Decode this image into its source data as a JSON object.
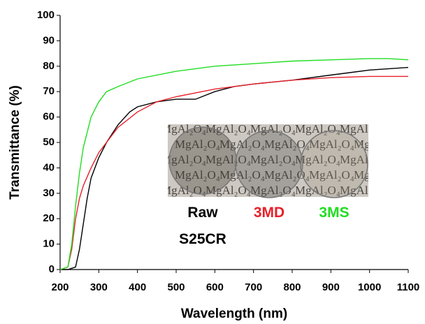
{
  "chart_data": {
    "type": "line",
    "xlabel": "Wavelength (nm)",
    "ylabel": "Transmittance (%)",
    "xlim": [
      200,
      1100
    ],
    "ylim": [
      0,
      100
    ],
    "xticks": [
      200,
      300,
      400,
      500,
      600,
      700,
      800,
      900,
      1000,
      1100
    ],
    "yticks": [
      0,
      10,
      20,
      30,
      40,
      50,
      60,
      70,
      80,
      90,
      100
    ],
    "inset_label": "MgAl₂O₄",
    "series": [
      {
        "name": "Raw S25CR",
        "color": "#000000",
        "x": [
          200,
          220,
          240,
          250,
          260,
          270,
          280,
          300,
          320,
          350,
          380,
          400,
          450,
          500,
          550,
          600,
          650,
          700,
          800,
          900,
          1000,
          1050,
          1100
        ],
        "values": [
          0,
          0,
          1,
          8,
          18,
          28,
          36,
          44,
          50,
          57,
          62,
          64,
          66,
          67,
          67,
          70,
          72,
          73,
          74.5,
          76.5,
          78.5,
          79,
          79.5
        ]
      },
      {
        "name": "3MD",
        "color": "#e8202a",
        "x": [
          200,
          220,
          230,
          240,
          250,
          260,
          280,
          300,
          330,
          350,
          400,
          450,
          500,
          600,
          700,
          800,
          900,
          1000,
          1100
        ],
        "values": [
          0,
          1,
          8,
          20,
          28,
          33,
          40,
          46,
          52,
          56,
          62,
          66,
          68,
          71,
          73,
          74.5,
          75.5,
          76,
          76
        ]
      },
      {
        "name": "3MS",
        "color": "#22dd22",
        "x": [
          200,
          220,
          230,
          240,
          250,
          260,
          280,
          300,
          320,
          350,
          400,
          500,
          600,
          700,
          800,
          900,
          1000,
          1050,
          1100
        ],
        "values": [
          0,
          1,
          10,
          25,
          38,
          48,
          60,
          66,
          70,
          72,
          75,
          78,
          80,
          81,
          82,
          82.5,
          83,
          83,
          82.5
        ]
      }
    ]
  }
}
